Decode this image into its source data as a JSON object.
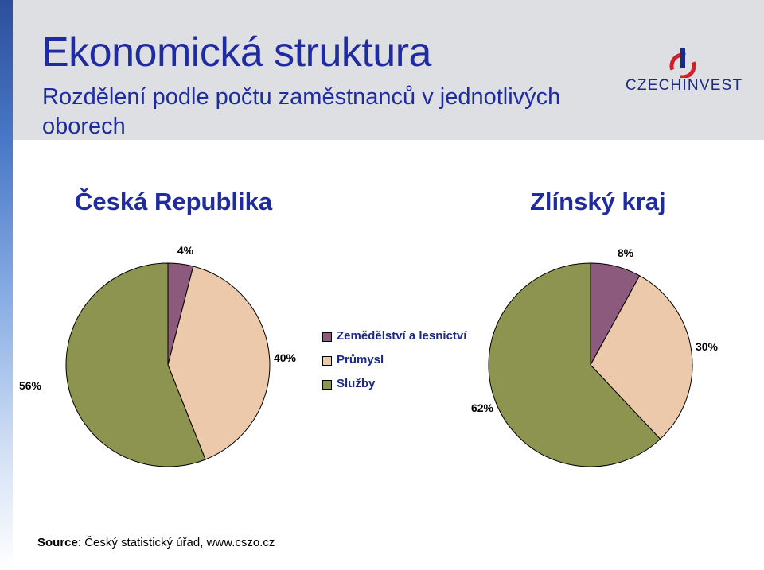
{
  "header": {
    "title": "Ekonomická struktura",
    "subtitle": "Rozdělení podle počtu zaměstnanců v jednotlivých oborech"
  },
  "logo": {
    "text_blue": "CZECH",
    "text_red": "INVEST"
  },
  "colors": {
    "title": "#1f2ca1",
    "zemedelstvi": "#8b5a7d",
    "prumysl": "#ecc9aa",
    "sluzby": "#8c9450"
  },
  "chart_data": [
    {
      "type": "pie",
      "title": "Česká Republika",
      "categories": [
        "Zemědělství a lesnictví",
        "Průmysl",
        "Služby"
      ],
      "values": [
        4,
        40,
        56
      ],
      "labels": [
        "4%",
        "40%",
        "56%"
      ]
    },
    {
      "type": "pie",
      "title": "Zlínský kraj",
      "categories": [
        "Zemědělství a lesnictví",
        "Průmysl",
        "Služby"
      ],
      "values": [
        8,
        30,
        62
      ],
      "labels": [
        "8%",
        "30%",
        "62%"
      ]
    }
  ],
  "legend": {
    "items": [
      "Zemědělství a lesnictví",
      "Průmysl",
      "Služby"
    ]
  },
  "source": {
    "label": "Source",
    "text": ": Český statistický úřad, www.cszo.cz"
  }
}
